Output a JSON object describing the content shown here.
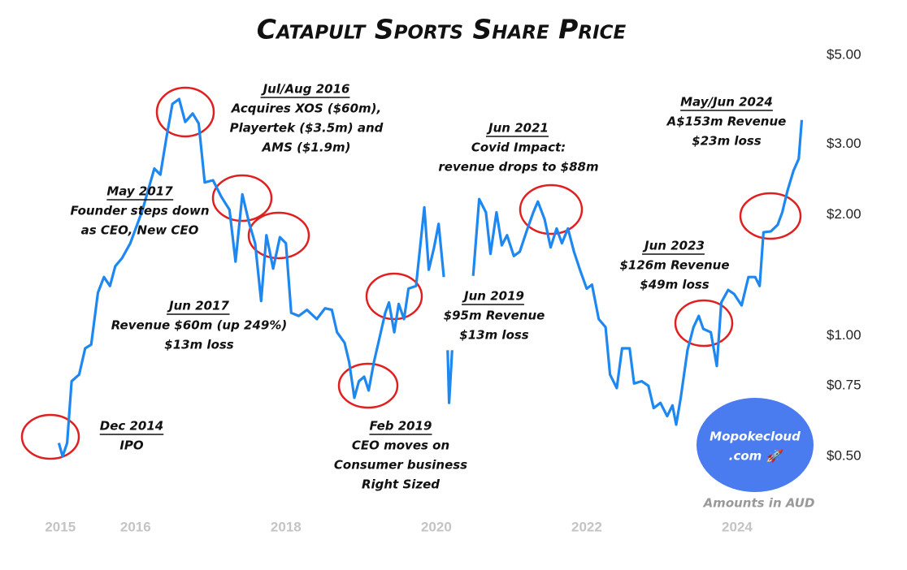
{
  "chart_data": {
    "type": "line",
    "title": "Catapult Sports Share Price",
    "log_scale": true,
    "grid": false,
    "color": "#1e88f0",
    "x": [
      2014.98,
      2015.03,
      2015.09,
      2015.15,
      2015.25,
      2015.33,
      2015.41,
      2015.5,
      2015.58,
      2015.66,
      2015.73,
      2015.82,
      2015.93,
      2016.09,
      2016.25,
      2016.33,
      2016.41,
      2016.49,
      2016.58,
      2016.66,
      2016.76,
      2016.84,
      2016.92,
      2017.03,
      2017.14,
      2017.25,
      2017.33,
      2017.42,
      2017.51,
      2017.59,
      2017.67,
      2017.74,
      2017.83,
      2017.92,
      2018.0,
      2018.07,
      2018.17,
      2018.28,
      2018.41,
      2018.52,
      2018.61,
      2018.68,
      2018.78,
      2018.84,
      2018.91,
      2018.97,
      2019.04,
      2019.1,
      2019.17,
      2019.24,
      2019.32,
      2019.37,
      2019.44,
      2019.5,
      2019.57,
      2019.63,
      2019.73,
      2019.84,
      2019.9,
      2019.97,
      2020.03,
      2020.1,
      2020.13,
      2020.15,
      2020.17,
      2020.21,
      2020.35,
      2020.49,
      2020.57,
      2020.66,
      2020.72,
      2020.8,
      2020.87,
      2020.94,
      2021.03,
      2021.11,
      2021.2,
      2021.29,
      2021.35,
      2021.44,
      2021.52,
      2021.6,
      2021.67,
      2021.75,
      2021.83,
      2021.91,
      2022.0,
      2022.07,
      2022.16,
      2022.25,
      2022.31,
      2022.4,
      2022.47,
      2022.57,
      2022.63,
      2022.73,
      2022.82,
      2022.89,
      2022.98,
      2023.07,
      2023.14,
      2023.19,
      2023.25,
      2023.34,
      2023.42,
      2023.49,
      2023.55,
      2023.65,
      2023.73,
      2023.79,
      2023.88,
      2023.96,
      2024.06,
      2024.15,
      2024.24,
      2024.3,
      2024.35,
      2024.45,
      2024.54,
      2024.6,
      2024.67,
      2024.75,
      2024.82,
      2024.86
    ],
    "values": [
      0.54,
      0.5,
      0.54,
      0.77,
      0.8,
      0.93,
      0.95,
      1.28,
      1.4,
      1.33,
      1.49,
      1.56,
      1.7,
      2.05,
      2.61,
      2.52,
      3.11,
      3.78,
      3.89,
      3.41,
      3.58,
      3.38,
      2.41,
      2.44,
      2.22,
      2.06,
      1.53,
      2.25,
      1.91,
      1.7,
      1.22,
      1.78,
      1.47,
      1.76,
      1.7,
      1.14,
      1.12,
      1.16,
      1.1,
      1.17,
      1.16,
      1.02,
      0.96,
      0.86,
      0.7,
      0.77,
      0.79,
      0.73,
      0.86,
      0.98,
      1.14,
      1.21,
      1.02,
      1.2,
      1.1,
      1.31,
      1.33,
      2.09,
      1.46,
      1.66,
      1.9,
      1.4,
      null,
      0.92,
      0.68,
      0.92,
      null,
      1.41,
      2.19,
      2.03,
      1.6,
      2.03,
      1.68,
      1.78,
      1.58,
      1.62,
      1.82,
      2.03,
      2.16,
      1.95,
      1.66,
      1.85,
      1.7,
      1.85,
      1.62,
      1.46,
      1.31,
      1.34,
      1.1,
      1.05,
      0.8,
      0.74,
      0.93,
      0.93,
      0.76,
      0.77,
      0.75,
      0.66,
      0.68,
      0.63,
      0.67,
      0.6,
      0.7,
      0.92,
      1.05,
      1.12,
      1.04,
      1.02,
      0.84,
      1.21,
      1.3,
      1.27,
      1.19,
      1.4,
      1.4,
      1.33,
      1.81,
      1.82,
      1.89,
      2.03,
      2.3,
      2.58,
      2.76,
      3.45
    ],
    "xlim": [
      2014.5,
      2025.2
    ],
    "xticks": [
      2015,
      2016,
      2018,
      2020,
      2022,
      2024
    ],
    "ylim": [
      0.4,
      5.7
    ],
    "yticks": [
      {
        "value": 0.5,
        "label": "$0.50"
      },
      {
        "value": 0.75,
        "label": "$0.75"
      },
      {
        "value": 1,
        "label": "$1.00"
      },
      {
        "value": 2,
        "label": "$2.00"
      },
      {
        "value": 3,
        "label": "$3.00"
      },
      {
        "value": 5,
        "label": "$5.00"
      }
    ],
    "annotations": [
      {
        "title": "Dec 2014",
        "lines": [
          "IPO"
        ]
      },
      {
        "title": "May 2017",
        "lines": [
          "Founder steps down",
          "as CEO, New CEO"
        ]
      },
      {
        "title": "Jul/Aug 2016",
        "lines": [
          "Acquires XOS ($60m),",
          "Playertek ($3.5m) and",
          "AMS ($1.9m)"
        ]
      },
      {
        "title": "Jun 2017",
        "lines": [
          "Revenue $60m (up 249%)",
          "$13m loss"
        ]
      },
      {
        "title": "Feb 2019",
        "lines": [
          "CEO moves on",
          "Consumer business",
          "Right Sized"
        ]
      },
      {
        "title": "Jun 2019",
        "lines": [
          "$95m Revenue",
          "$13m loss"
        ]
      },
      {
        "title": "Jun 2021",
        "lines": [
          "Covid Impact:",
          "revenue drops to $88m"
        ]
      },
      {
        "title": "Jun 2023",
        "lines": [
          "$126m Revenue",
          "$49m loss"
        ]
      },
      {
        "title": "May/Jun 2024",
        "lines": [
          "A$153m Revenue",
          "$23m loss"
        ]
      }
    ],
    "watermark": [
      "Mopokecloud",
      ".com 🚀"
    ],
    "note": "Amounts in AUD"
  }
}
